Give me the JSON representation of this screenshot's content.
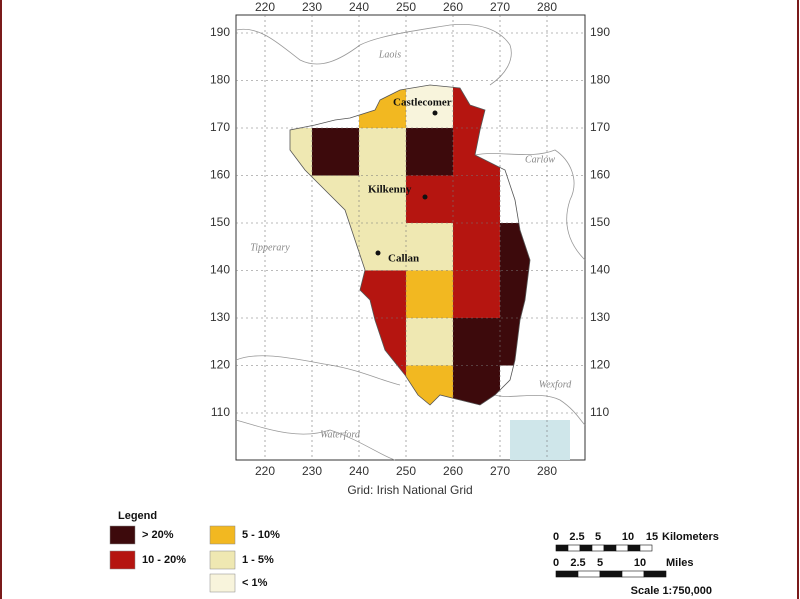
{
  "map": {
    "xticks": [
      220,
      230,
      240,
      250,
      260,
      270,
      280
    ],
    "yticks": [
      190,
      180,
      170,
      160,
      150,
      140,
      130,
      120,
      110
    ],
    "grid_caption": "Grid: Irish National Grid",
    "counties": [
      "Laois",
      "Carlow",
      "Tipperary",
      "Waterford",
      "Wexford"
    ],
    "towns": [
      "Castlecomer",
      "Kilkenny",
      "Callan"
    ],
    "legend": {
      "title": "Legend",
      "items": [
        {
          "label": "> 20%",
          "color": "#3d0a0c"
        },
        {
          "label": "10 - 20%",
          "color": "#b51510"
        },
        {
          "label": "5 - 10%",
          "color": "#f2b821"
        },
        {
          "label": "1 - 5%",
          "color": "#efe8b2"
        },
        {
          "label": "< 1%",
          "color": "#f8f4dc"
        }
      ]
    },
    "scale": {
      "km_labels": [
        "0",
        "2.5",
        "5",
        "10",
        "15"
      ],
      "km_unit": "Kilometers",
      "mi_labels": [
        "0",
        "2.5",
        "5",
        "10"
      ],
      "mi_unit": "Miles",
      "ratio": "Scale 1:750,000"
    }
  }
}
